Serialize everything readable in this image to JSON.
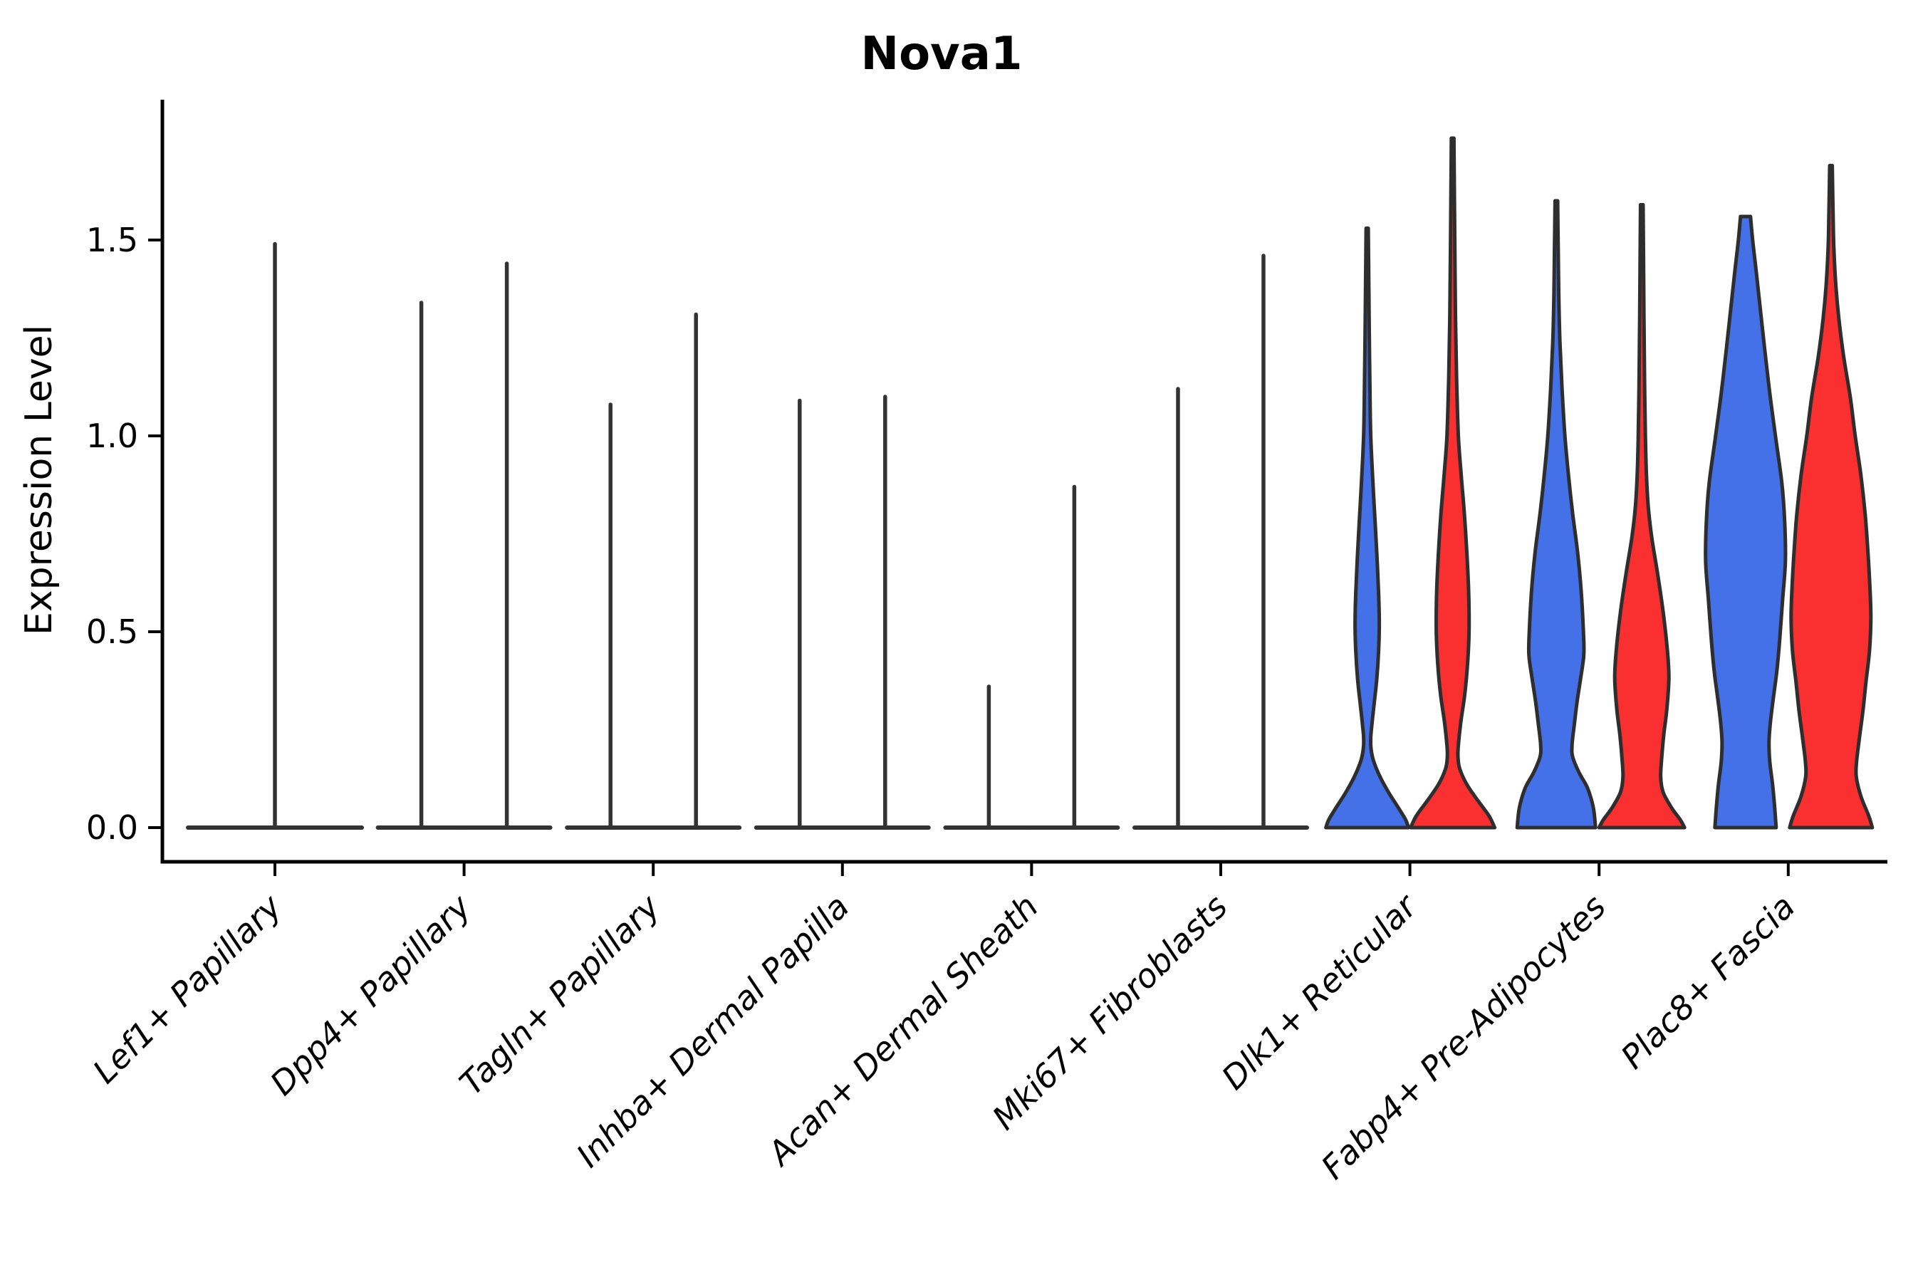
{
  "chart_data": {
    "type": "violin",
    "title": "Nova1",
    "ylabel": "Expression Level",
    "xlabel": "",
    "ytick_labels": [
      "0.0",
      "0.5",
      "1.0",
      "1.5"
    ],
    "ytick_values": [
      0.0,
      0.5,
      1.0,
      1.5
    ],
    "ylim": [
      -0.09,
      1.86
    ],
    "grid": false,
    "legend": "none",
    "colors": {
      "split_blue": "#4470e8",
      "split_red": "#fa2f2f",
      "outline": "#2e2e2e",
      "collapsed_line": "#333333",
      "axis": "#000000",
      "background": "#ffffff"
    },
    "categories": [
      {
        "label": "Lef1+ Papillary",
        "violins": [
          {
            "side": "center",
            "style": "collapsed",
            "color": null,
            "max": 1.49,
            "base_halfwidth": 122
          }
        ]
      },
      {
        "label": "Dpp4+ Papillary",
        "violins": [
          {
            "side": "left",
            "style": "collapsed",
            "color": null,
            "max": 1.34,
            "base_halfwidth": 61
          },
          {
            "side": "right",
            "style": "collapsed",
            "color": null,
            "max": 1.44,
            "base_halfwidth": 61
          }
        ]
      },
      {
        "label": "Tagln+ Papillary",
        "violins": [
          {
            "side": "left",
            "style": "collapsed",
            "color": null,
            "max": 1.08,
            "base_halfwidth": 61
          },
          {
            "side": "right",
            "style": "collapsed",
            "color": null,
            "max": 1.31,
            "base_halfwidth": 61
          }
        ]
      },
      {
        "label": "Inhba+ Dermal Papilla",
        "violins": [
          {
            "side": "left",
            "style": "collapsed",
            "color": null,
            "max": 1.09,
            "base_halfwidth": 61
          },
          {
            "side": "right",
            "style": "collapsed",
            "color": null,
            "max": 1.1,
            "base_halfwidth": 61
          }
        ]
      },
      {
        "label": "Acan+ Dermal Sheath",
        "violins": [
          {
            "side": "left",
            "style": "collapsed",
            "color": null,
            "max": 0.36,
            "base_halfwidth": 61
          },
          {
            "side": "right",
            "style": "collapsed",
            "color": null,
            "max": 0.87,
            "base_halfwidth": 61
          }
        ]
      },
      {
        "label": "Mki67+ Fibroblasts",
        "violins": [
          {
            "side": "left",
            "style": "collapsed",
            "color": null,
            "max": 1.12,
            "base_halfwidth": 61
          },
          {
            "side": "right",
            "style": "collapsed",
            "color": null,
            "max": 1.46,
            "base_halfwidth": 61
          }
        ]
      },
      {
        "label": "Dlk1+ Reticular",
        "violins": [
          {
            "side": "left",
            "style": "filled",
            "color": "blue",
            "max": 1.53,
            "profile": [
              [
                1.53,
                1.5
              ],
              [
                1.4,
                2.2
              ],
              [
                1.25,
                3
              ],
              [
                1.1,
                4
              ],
              [
                1.0,
                5
              ],
              [
                0.9,
                7.5
              ],
              [
                0.8,
                10.5
              ],
              [
                0.7,
                13.5
              ],
              [
                0.6,
                16
              ],
              [
                0.52,
                17
              ],
              [
                0.45,
                16
              ],
              [
                0.38,
                13.5
              ],
              [
                0.32,
                10
              ],
              [
                0.27,
                7
              ],
              [
                0.23,
                5
              ],
              [
                0.2,
                5.5
              ],
              [
                0.17,
                9
              ],
              [
                0.13,
                18
              ],
              [
                0.09,
                30
              ],
              [
                0.05,
                44
              ],
              [
                0.02,
                54
              ],
              [
                0.0,
                58
              ]
            ]
          },
          {
            "side": "right",
            "style": "filled",
            "color": "red",
            "max": 1.76,
            "profile": [
              [
                1.76,
                1.8
              ],
              [
                1.6,
                2.5
              ],
              [
                1.45,
                3.2
              ],
              [
                1.3,
                4
              ],
              [
                1.15,
                5.5
              ],
              [
                1.0,
                8
              ],
              [
                0.9,
                12
              ],
              [
                0.8,
                16.5
              ],
              [
                0.7,
                20
              ],
              [
                0.6,
                22.5
              ],
              [
                0.5,
                23
              ],
              [
                0.42,
                21
              ],
              [
                0.34,
                17
              ],
              [
                0.27,
                11.5
              ],
              [
                0.21,
                8
              ],
              [
                0.18,
                7.5
              ],
              [
                0.15,
                10
              ],
              [
                0.11,
                20
              ],
              [
                0.07,
                35
              ],
              [
                0.03,
                51
              ],
              [
                0.0,
                59
              ]
            ]
          }
        ]
      },
      {
        "label": "Fabp4+ Pre-Adipocytes",
        "violins": [
          {
            "side": "left",
            "style": "filled",
            "color": "blue",
            "max": 1.6,
            "profile": [
              [
                1.6,
                1.8
              ],
              [
                1.48,
                2.6
              ],
              [
                1.36,
                3.4
              ],
              [
                1.24,
                5
              ],
              [
                1.12,
                8
              ],
              [
                1.0,
                12
              ],
              [
                0.9,
                17
              ],
              [
                0.8,
                23
              ],
              [
                0.7,
                30
              ],
              [
                0.6,
                35
              ],
              [
                0.5,
                38
              ],
              [
                0.44,
                38.5
              ],
              [
                0.38,
                34
              ],
              [
                0.32,
                29
              ],
              [
                0.26,
                25
              ],
              [
                0.21,
                22
              ],
              [
                0.18,
                23
              ],
              [
                0.14,
                32
              ],
              [
                0.1,
                44
              ],
              [
                0.05,
                52
              ],
              [
                0.0,
                55
              ]
            ]
          },
          {
            "side": "right",
            "style": "filled",
            "color": "red",
            "max": 1.59,
            "profile": [
              [
                1.59,
                1.8
              ],
              [
                1.45,
                2.4
              ],
              [
                1.3,
                3
              ],
              [
                1.15,
                3.8
              ],
              [
                1.0,
                5
              ],
              [
                0.9,
                6.5
              ],
              [
                0.82,
                9
              ],
              [
                0.74,
                14
              ],
              [
                0.65,
                22
              ],
              [
                0.55,
                30
              ],
              [
                0.45,
                36
              ],
              [
                0.38,
                38
              ],
              [
                0.3,
                35
              ],
              [
                0.24,
                31
              ],
              [
                0.18,
                28
              ],
              [
                0.13,
                26.5
              ],
              [
                0.09,
                30
              ],
              [
                0.05,
                42
              ],
              [
                0.02,
                54
              ],
              [
                0.0,
                60
              ]
            ]
          }
        ]
      },
      {
        "label": "Plac8+ Fascia",
        "violins": [
          {
            "side": "left",
            "style": "filled",
            "color": "blue",
            "max": 1.56,
            "profile": [
              [
                1.56,
                7
              ],
              [
                1.5,
                10
              ],
              [
                1.42,
                15
              ],
              [
                1.32,
                21
              ],
              [
                1.22,
                27
              ],
              [
                1.11,
                34
              ],
              [
                1.0,
                42
              ],
              [
                0.88,
                51
              ],
              [
                0.78,
                55
              ],
              [
                0.68,
                56
              ],
              [
                0.58,
                52
              ],
              [
                0.48,
                48
              ],
              [
                0.4,
                44
              ],
              [
                0.33,
                39
              ],
              [
                0.27,
                35
              ],
              [
                0.22,
                33
              ],
              [
                0.17,
                34
              ],
              [
                0.11,
                38
              ],
              [
                0.05,
                41
              ],
              [
                0.0,
                43
              ]
            ]
          },
          {
            "side": "right",
            "style": "filled",
            "color": "red",
            "max": 1.69,
            "profile": [
              [
                1.69,
                1.8
              ],
              [
                1.58,
                2.8
              ],
              [
                1.48,
                4
              ],
              [
                1.38,
                7
              ],
              [
                1.3,
                11
              ],
              [
                1.2,
                18
              ],
              [
                1.1,
                27
              ],
              [
                1.0,
                34
              ],
              [
                0.9,
                42
              ],
              [
                0.8,
                48
              ],
              [
                0.7,
                52
              ],
              [
                0.6,
                55
              ],
              [
                0.53,
                56
              ],
              [
                0.45,
                54
              ],
              [
                0.37,
                49
              ],
              [
                0.3,
                45
              ],
              [
                0.23,
                40
              ],
              [
                0.17,
                36
              ],
              [
                0.13,
                35.5
              ],
              [
                0.08,
                42
              ],
              [
                0.03,
                53
              ],
              [
                0.0,
                58
              ]
            ]
          }
        ]
      }
    ]
  }
}
